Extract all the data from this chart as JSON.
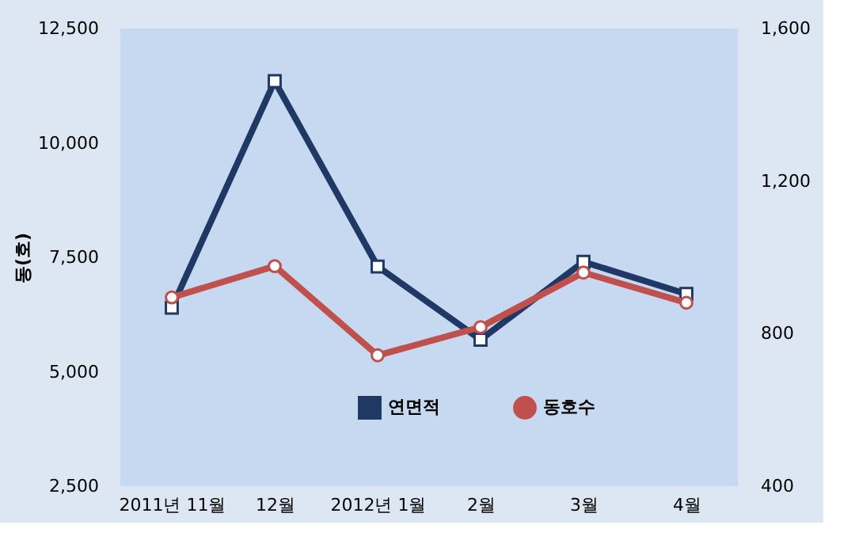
{
  "chart_data": {
    "type": "line",
    "ylabel": "동(호)",
    "categories": [
      "2011년 11월",
      "12월",
      "2012년 1월",
      "2월",
      "3월",
      "4월"
    ],
    "series": [
      {
        "name": "연면적",
        "color": "#1f3864",
        "marker": "square",
        "values": [
          6400,
          11350,
          7300,
          5700,
          7400,
          6700
        ]
      },
      {
        "name": "동호수",
        "color": "#c0504d",
        "marker": "circle",
        "axis": "y2",
        "values": [
          895,
          977,
          743,
          817,
          960,
          881
        ]
      }
    ],
    "ylim": [
      2500,
      12500
    ],
    "yticks": [
      {
        "value": 2500,
        "label": "2,500"
      },
      {
        "value": 5000,
        "label": "5,000"
      },
      {
        "value": 7500,
        "label": "7,500"
      },
      {
        "value": 10000,
        "label": "10,000"
      },
      {
        "value": 12500,
        "label": "12,500"
      }
    ],
    "y2lim": [
      400,
      1600
    ],
    "y2ticks": [
      400,
      800,
      {
        "value": 1200,
        "label": "1,200"
      },
      {
        "value": 1600,
        "label": "1,600"
      }
    ],
    "grid": false,
    "legend": "bottom"
  }
}
